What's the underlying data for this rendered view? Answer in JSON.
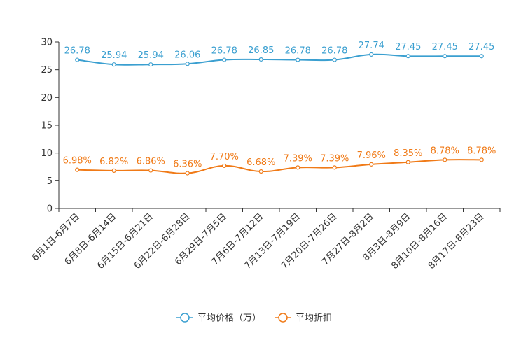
{
  "chart_data": {
    "type": "line",
    "title": "",
    "xlabel": "",
    "ylabel": "",
    "ylim": [
      0,
      30
    ],
    "yticks": [
      0,
      5,
      10,
      15,
      20,
      25,
      30
    ],
    "categories": [
      "6月1日-6月7日",
      "6月8日-6月14日",
      "6月15日-6月21日",
      "6月22日-6月28日",
      "6月29日-7月5日",
      "7月6日-7月12日",
      "7月13日-7月19日",
      "7月20日-7月26日",
      "7月27日-8月2日",
      "8月3日-8月9日",
      "8月10日-8月16日",
      "8月17日-8月23日"
    ],
    "series": [
      {
        "name": "平均价格（万）",
        "color": "#3a9fd0",
        "values": [
          26.78,
          25.94,
          25.94,
          26.06,
          26.78,
          26.85,
          26.78,
          26.78,
          27.74,
          27.45,
          27.45,
          27.45
        ],
        "labels": [
          "26.78",
          "25.94",
          "25.94",
          "26.06",
          "26.78",
          "26.85",
          "26.78",
          "26.78",
          "27.74",
          "27.45",
          "27.45",
          "27.45"
        ]
      },
      {
        "name": "平均折扣",
        "color": "#f07a17",
        "values": [
          6.98,
          6.82,
          6.86,
          6.36,
          7.7,
          6.68,
          7.39,
          7.39,
          7.96,
          8.35,
          8.78,
          8.78
        ],
        "labels": [
          "6.98%",
          "6.82%",
          "6.86%",
          "6.36%",
          "7.70%",
          "6.68%",
          "7.39%",
          "7.39%",
          "7.96%",
          "8.35%",
          "8.78%",
          "8.78%"
        ]
      }
    ],
    "legend_position": "bottom-center"
  }
}
